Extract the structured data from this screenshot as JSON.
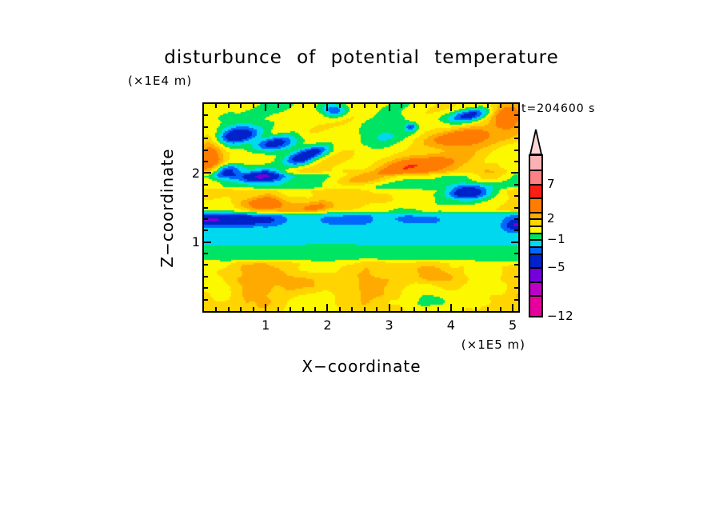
{
  "chart_data": {
    "type": "filled_contour",
    "title": "disturbunce of potential temperature",
    "time_label": "t=204600 s",
    "x_axis": {
      "label": "X−coordinate",
      "unit": "(×1E5 m)",
      "range": [
        0,
        5.09
      ],
      "tick_values": [
        1,
        2,
        3,
        4,
        5
      ],
      "tick_labels": [
        "1",
        "2",
        "3",
        "4",
        "5"
      ],
      "minor_step": 0.2
    },
    "z_axis": {
      "label": "Z−coordinate",
      "unit": "(×1E4 m)",
      "range": [
        0,
        3.01
      ],
      "tick_values": [
        1,
        2
      ],
      "tick_labels": [
        "1",
        "2"
      ],
      "minor_divisions": 18
    },
    "colorbar": {
      "levels": [
        -12,
        -9,
        -7,
        -5,
        -3,
        -2,
        -1,
        0,
        1,
        2,
        3,
        5,
        7,
        9,
        11
      ],
      "colors": [
        "#e6009c",
        "#bc00c4",
        "#7400dc",
        "#0022c8",
        "#0066fc",
        "#00d8f0",
        "#00e464",
        "#fcf800",
        "#ffd400",
        "#ffaa00",
        "#ff7c00",
        "#fc1e14",
        "#fc8084",
        "#fcb2b4"
      ],
      "overflow_color": "#fcd6d6",
      "labels": [
        {
          "value": 7,
          "text": "7"
        },
        {
          "value": 2,
          "text": "2"
        },
        {
          "value": -1,
          "text": "−1"
        },
        {
          "value": -5,
          "text": "−5"
        },
        {
          "value": -12,
          "text": "−12"
        }
      ]
    },
    "field": {
      "seed": 2.137,
      "bands": [
        {
          "z0": 0.0,
          "z1": 0.72,
          "base": 1.3,
          "amp": 2.2,
          "sx": 1.15,
          "sz": 2.3,
          "ox": 0.0,
          "oy": 0.0,
          "shear": 0.0
        },
        {
          "z0": 0.72,
          "z1": 0.95,
          "base": -0.45,
          "amp": 0.75,
          "sx": 1.1,
          "sz": 3.2,
          "ox": 3.1,
          "oy": 5.0,
          "shear": 0.0
        },
        {
          "z0": 0.95,
          "z1": 1.42,
          "base": -1.55,
          "amp": 0.55,
          "sx": 0.9,
          "sz": 2.8,
          "ox": 6.2,
          "oy": 2.5,
          "shear": 0.0
        },
        {
          "z0": 1.42,
          "z1": 1.78,
          "base": 1.25,
          "amp": 1.9,
          "sx": 1.0,
          "sz": 2.6,
          "ox": 1.7,
          "oy": 8.3,
          "shear": 0.0
        },
        {
          "z0": 1.78,
          "z1": 2.0,
          "base": -0.5,
          "amp": 1.0,
          "sx": 0.95,
          "sz": 3.0,
          "ox": 4.4,
          "oy": 6.1,
          "shear": 0.0
        },
        {
          "z0": 2.0,
          "z1": 3.02,
          "base": 0.45,
          "amp": 2.5,
          "sx": 0.85,
          "sz": 1.35,
          "ox": 2.9,
          "oy": 4.2,
          "shear": 1.8
        }
      ],
      "streak": {
        "zc": 1.32,
        "zw": 0.075,
        "amp": 3.3,
        "fade_start": 3.55,
        "fade_end": 4.25,
        "nx": 0.8,
        "off": 7.7,
        "gain": 1.45,
        "thr": 0.55
      },
      "blobs": [
        {
          "x": 0.55,
          "z": 2.55,
          "rx": 0.3,
          "rz": 0.13,
          "a": -5.0,
          "k": 1.2
        },
        {
          "x": 1.15,
          "z": 2.44,
          "rx": 0.3,
          "rz": 0.12,
          "a": -5.0,
          "k": 1.2
        },
        {
          "x": 1.8,
          "z": 2.32,
          "rx": 0.26,
          "rz": 0.1,
          "a": -4.2,
          "k": 1.2
        },
        {
          "x": 0.35,
          "z": 2.04,
          "rx": 0.26,
          "rz": 0.1,
          "a": -4.6,
          "k": 0.8
        },
        {
          "x": 0.95,
          "z": 1.97,
          "rx": 0.3,
          "rz": 0.1,
          "a": -4.6,
          "k": 0.8
        },
        {
          "x": 1.55,
          "z": 2.2,
          "rx": 0.24,
          "rz": 0.1,
          "a": -4.2,
          "k": 0.8
        },
        {
          "x": 4.3,
          "z": 2.84,
          "rx": 0.34,
          "rz": 0.11,
          "a": -5.0,
          "k": 1.5
        },
        {
          "x": 2.1,
          "z": 2.92,
          "rx": 0.2,
          "rz": 0.09,
          "a": -3.8,
          "k": 0.0
        },
        {
          "x": 3.35,
          "z": 2.68,
          "rx": 0.09,
          "rz": 0.06,
          "a": -3.2,
          "k": 0.0
        },
        {
          "x": 2.95,
          "z": 2.52,
          "rx": 0.4,
          "rz": 0.2,
          "a": -2.4,
          "k": 1.0
        },
        {
          "x": 4.28,
          "z": 1.73,
          "rx": 0.34,
          "rz": 0.1,
          "a": -5.0,
          "k": 0.5
        },
        {
          "x": 5.06,
          "z": 1.25,
          "rx": 0.14,
          "rz": 0.07,
          "a": -3.6,
          "k": 0.0
        },
        {
          "x": 0.1,
          "z": 2.25,
          "rx": 0.22,
          "rz": 0.38,
          "a": 3.6,
          "k": 0.0
        },
        {
          "x": 3.35,
          "z": 2.12,
          "rx": 0.62,
          "rz": 0.14,
          "a": 3.4,
          "k": 1.8
        },
        {
          "x": 4.15,
          "z": 2.52,
          "rx": 0.5,
          "rz": 0.13,
          "a": 3.8,
          "k": 1.8
        },
        {
          "x": 2.55,
          "z": 1.92,
          "rx": 0.45,
          "rz": 0.12,
          "a": 2.8,
          "k": 1.8
        },
        {
          "x": 4.9,
          "z": 2.82,
          "rx": 0.28,
          "rz": 0.22,
          "a": 4.0,
          "k": 0.0
        },
        {
          "x": 4.65,
          "z": 1.98,
          "rx": 0.3,
          "rz": 0.11,
          "a": 2.4,
          "k": 1.0
        },
        {
          "x": 0.95,
          "z": 1.57,
          "rx": 0.36,
          "rz": 0.1,
          "a": 3.0,
          "k": 0.5
        },
        {
          "x": 1.85,
          "z": 1.52,
          "rx": 0.3,
          "rz": 0.09,
          "a": 2.6,
          "k": 0.5
        },
        {
          "x": 1.7,
          "z": 0.45,
          "rx": 0.45,
          "rz": 0.13,
          "a": 1.3,
          "k": 0.0
        },
        {
          "x": 3.85,
          "z": 0.5,
          "rx": 0.5,
          "rz": 0.14,
          "a": 1.4,
          "k": 0.0
        }
      ]
    }
  }
}
